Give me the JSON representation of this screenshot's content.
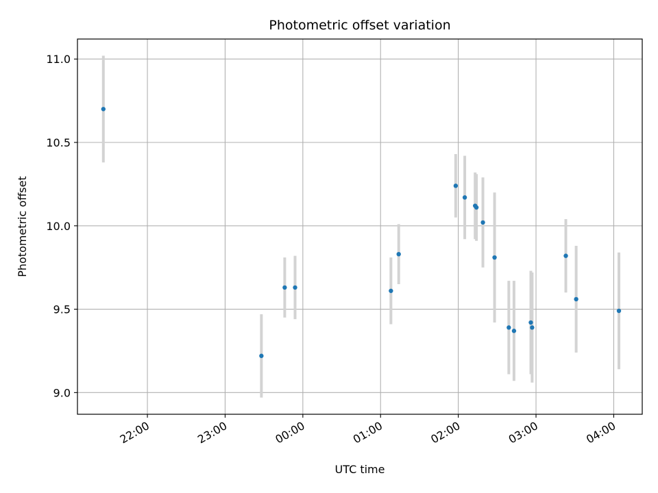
{
  "chart_data": {
    "type": "scatter",
    "title": "Photometric offset variation",
    "xlabel": "UTC time",
    "ylabel": "Photometric offset",
    "x_axis_type": "time",
    "xlim": [
      "21:06",
      "04:22"
    ],
    "ylim": [
      8.87,
      11.12
    ],
    "grid": true,
    "yticks": [
      9.0,
      9.5,
      10.0,
      10.5,
      11.0
    ],
    "ytick_labels": [
      "9.0",
      "9.5",
      "10.0",
      "10.5",
      "11.0"
    ],
    "xticks": [
      "22:00",
      "23:00",
      "00:00",
      "01:00",
      "02:00",
      "03:00",
      "04:00"
    ],
    "xtick_labels": [
      "22:00",
      "23:00",
      "00:00",
      "01:00",
      "02:00",
      "03:00",
      "04:00"
    ],
    "marker_color": "#1f77b4",
    "errorbar_color": "#d3d3d3",
    "points": [
      {
        "x": "21:26",
        "y": 10.7,
        "yerr": 0.32
      },
      {
        "x": "23:28",
        "y": 9.22,
        "yerr": 0.25
      },
      {
        "x": "23:46",
        "y": 9.63,
        "yerr": 0.18
      },
      {
        "x": "23:54",
        "y": 9.63,
        "yerr": 0.19
      },
      {
        "x": "01:08",
        "y": 9.61,
        "yerr": 0.2
      },
      {
        "x": "01:14",
        "y": 9.83,
        "yerr": 0.18
      },
      {
        "x": "01:58",
        "y": 10.24,
        "yerr": 0.19
      },
      {
        "x": "02:05",
        "y": 10.17,
        "yerr": 0.25
      },
      {
        "x": "02:13",
        "y": 10.12,
        "yerr": 0.2
      },
      {
        "x": "02:14",
        "y": 10.11,
        "yerr": 0.2
      },
      {
        "x": "02:19",
        "y": 10.02,
        "yerr": 0.27
      },
      {
        "x": "02:28",
        "y": 9.81,
        "yerr": 0.39
      },
      {
        "x": "02:39",
        "y": 9.39,
        "yerr": 0.28
      },
      {
        "x": "02:43",
        "y": 9.37,
        "yerr": 0.3
      },
      {
        "x": "02:56",
        "y": 9.42,
        "yerr": 0.31
      },
      {
        "x": "02:57",
        "y": 9.39,
        "yerr": 0.33
      },
      {
        "x": "03:23",
        "y": 9.82,
        "yerr": 0.22
      },
      {
        "x": "03:31",
        "y": 9.56,
        "yerr": 0.32
      },
      {
        "x": "04:04",
        "y": 9.49,
        "yerr": 0.35
      }
    ]
  }
}
